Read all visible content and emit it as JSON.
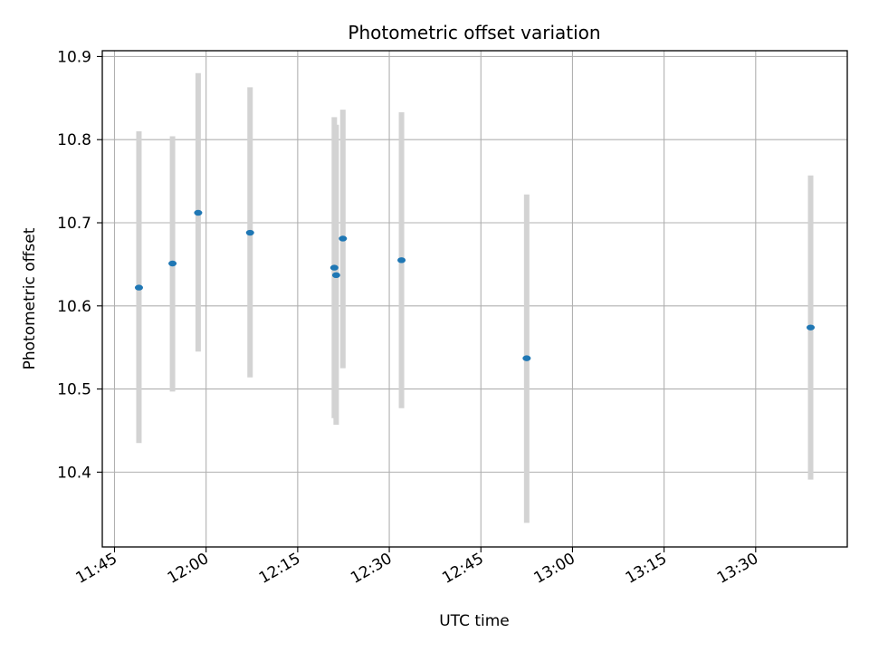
{
  "chart_data": {
    "type": "scatter",
    "title": "Photometric offset variation",
    "xlabel": "UTC time",
    "ylabel": "Photometric offset",
    "grid": true,
    "x_ticks": [
      "11:45",
      "12:00",
      "12:15",
      "12:30",
      "12:45",
      "13:00",
      "13:15",
      "13:30"
    ],
    "y_ticks": [
      "10.4",
      "10.5",
      "10.6",
      "10.7",
      "10.8",
      "10.9"
    ],
    "xlim": [
      "11:43",
      "13:45"
    ],
    "ylim": [
      10.31,
      10.907
    ],
    "colors": {
      "point": "#1f77b4",
      "errorbar": "#d3d3d3",
      "grid": "#b0b0b0"
    },
    "points": [
      {
        "x": "11:49",
        "y": 10.622,
        "y_low": 10.435,
        "y_high": 10.81
      },
      {
        "x": "11:54.5",
        "y": 10.651,
        "y_low": 10.497,
        "y_high": 10.804
      },
      {
        "x": "11:58.7",
        "y": 10.712,
        "y_low": 10.545,
        "y_high": 10.88
      },
      {
        "x": "12:07.2",
        "y": 10.688,
        "y_low": 10.514,
        "y_high": 10.863
      },
      {
        "x": "12:21",
        "y": 10.646,
        "y_low": 10.465,
        "y_high": 10.827
      },
      {
        "x": "12:21.3",
        "y": 10.637,
        "y_low": 10.457,
        "y_high": 10.818
      },
      {
        "x": "12:22.4",
        "y": 10.681,
        "y_low": 10.525,
        "y_high": 10.836
      },
      {
        "x": "12:32",
        "y": 10.655,
        "y_low": 10.477,
        "y_high": 10.833
      },
      {
        "x": "12:52.5",
        "y": 10.537,
        "y_low": 10.339,
        "y_high": 10.734
      },
      {
        "x": "13:39",
        "y": 10.574,
        "y_low": 10.391,
        "y_high": 10.757
      }
    ]
  }
}
